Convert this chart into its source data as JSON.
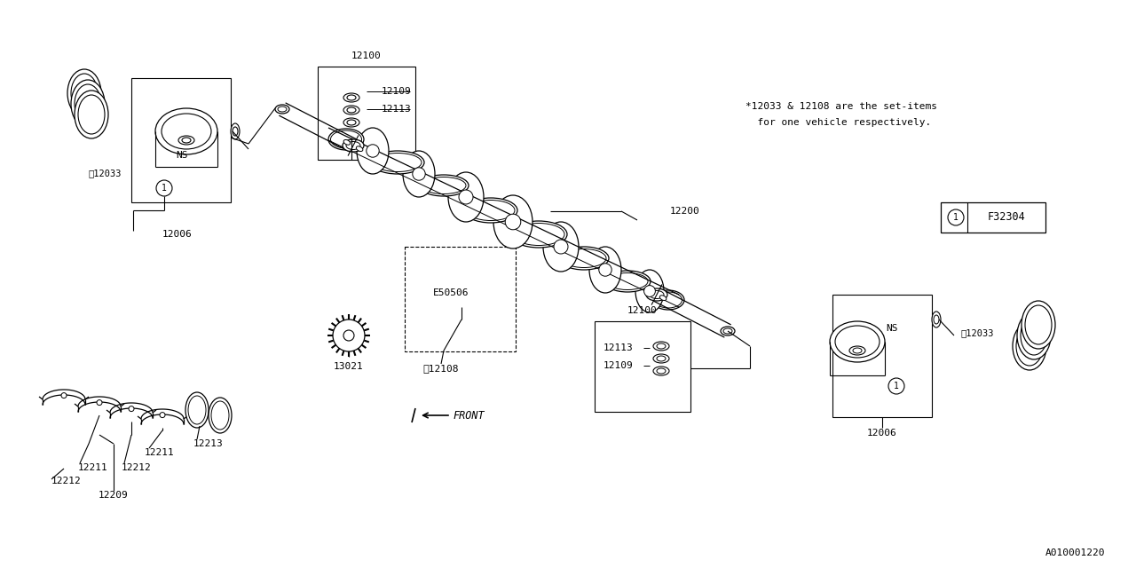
{
  "bg_color": "#ffffff",
  "line_color": "#000000",
  "text_color": "#000000",
  "diagram_id": "A010001220",
  "note_line1": "*12033 & 12108 are the set-items",
  "note_line2": "  for one vehicle respectively.",
  "legend_circle": "1",
  "legend_text": "F32304"
}
